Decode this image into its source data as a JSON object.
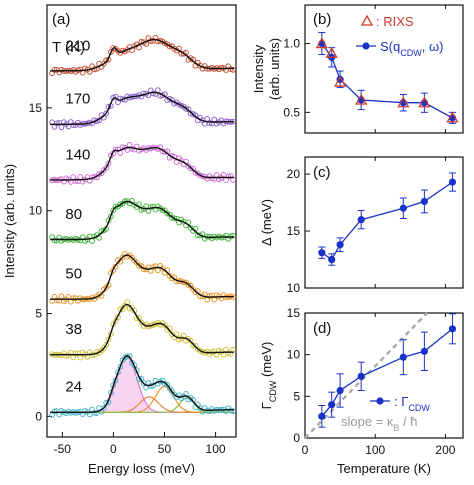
{
  "chart_data": [
    {
      "panel": "(a)",
      "type": "line",
      "xlabel": "Energy loss (meV)",
      "ylabel": "Intensity (arb. units)",
      "xlim": [
        -65,
        120
      ],
      "ylim": [
        -1,
        20
      ],
      "xticks": [
        "-50",
        "0",
        "50",
        "100"
      ],
      "yticks": [
        "0",
        "5",
        "10",
        "15"
      ],
      "legend_header": "T (K)",
      "series": [
        {
          "name": "24",
          "color": "#49b7c9",
          "offset": 0.2
        },
        {
          "name": "38",
          "color": "#cfc23a",
          "offset": 3.0
        },
        {
          "name": "50",
          "color": "#e8972a",
          "offset": 5.7
        },
        {
          "name": "80",
          "color": "#49b742",
          "offset": 8.6
        },
        {
          "name": "140",
          "color": "#d070d6",
          "offset": 11.5
        },
        {
          "name": "170",
          "color": "#9063cc",
          "offset": 14.2
        },
        {
          "name": "210",
          "color": "#c7523a",
          "offset": 16.8
        }
      ],
      "fit_color": "#111111",
      "components": [
        {
          "center": 13,
          "width": 10,
          "amp": 2.7,
          "color": "#e07bd0",
          "fill": "#f7c9ee"
        },
        {
          "center": 35,
          "width": 9,
          "amp": 0.75,
          "color": "#e2833a"
        },
        {
          "center": 50,
          "width": 9,
          "amp": 1.25,
          "color": "#e8972a"
        },
        {
          "center": 72,
          "width": 7,
          "amp": 0.7,
          "color": "#8bc34a"
        },
        {
          "center": 0,
          "width": 3,
          "amp": 0.15,
          "color": "#d04040"
        }
      ]
    },
    {
      "panel": "(b)",
      "type": "line",
      "ylabel": "Intensity (arb. units)",
      "ylim": [
        0.35,
        1.28
      ],
      "yticks": [
        "0.5",
        "1.0"
      ],
      "series": [
        {
          "name": "S(q",
          "name_sub": "CDW",
          "name_tail": ", ω)",
          "color": "#1a32c8",
          "x": [
            24,
            38,
            50,
            80,
            140,
            170,
            210
          ],
          "y": [
            1.0,
            0.9,
            0.74,
            0.59,
            0.57,
            0.57,
            0.46
          ],
          "err": [
            0.08,
            0.07,
            0.06,
            0.07,
            0.06,
            0.07,
            0.04
          ]
        },
        {
          "name": ": RIXS",
          "color": "#d03a2e",
          "x": [
            24,
            38,
            50,
            80,
            140,
            170,
            210
          ],
          "y": [
            1.0,
            0.93,
            0.72,
            0.59,
            0.57,
            0.57,
            0.46
          ]
        }
      ]
    },
    {
      "panel": "(c)",
      "type": "line",
      "ylabel": "Δ (meV)",
      "ylim": [
        10,
        21.5
      ],
      "yticks": [
        "10",
        "15",
        "20"
      ],
      "series": [
        {
          "color": "#1a32c8",
          "x": [
            24,
            38,
            50,
            80,
            140,
            170,
            210
          ],
          "y": [
            13.1,
            12.5,
            13.8,
            16.0,
            17.0,
            17.6,
            19.3
          ],
          "err": [
            0.5,
            0.5,
            0.6,
            0.8,
            0.9,
            1.0,
            0.8
          ]
        }
      ]
    },
    {
      "panel": "(d)",
      "type": "line",
      "xlabel": "Temperature (K)",
      "ylabel": "Γ",
      "ylabel_sub": "CDW",
      "ylabel_tail": " (meV)",
      "xlim": [
        0,
        225
      ],
      "ylim": [
        0,
        15
      ],
      "xticks": [
        "0",
        "100",
        "200"
      ],
      "yticks": [
        "0",
        "5",
        "10",
        "15"
      ],
      "series": [
        {
          "name": ": Γ",
          "name_sub": "CDW",
          "color": "#1a32c8",
          "x": [
            24,
            38,
            50,
            80,
            140,
            170,
            210
          ],
          "y": [
            2.6,
            4.0,
            5.7,
            7.4,
            9.7,
            10.4,
            13.1
          ],
          "err": [
            1.3,
            1.5,
            2.0,
            1.7,
            2.1,
            2.3,
            1.8
          ]
        }
      ],
      "reference_line": {
        "label": "slope = κ",
        "label_sub": "B",
        "label_tail": " / ħ",
        "color": "#aaaaaa",
        "x": [
          0,
          225
        ],
        "y": [
          0,
          19.4
        ]
      }
    }
  ]
}
